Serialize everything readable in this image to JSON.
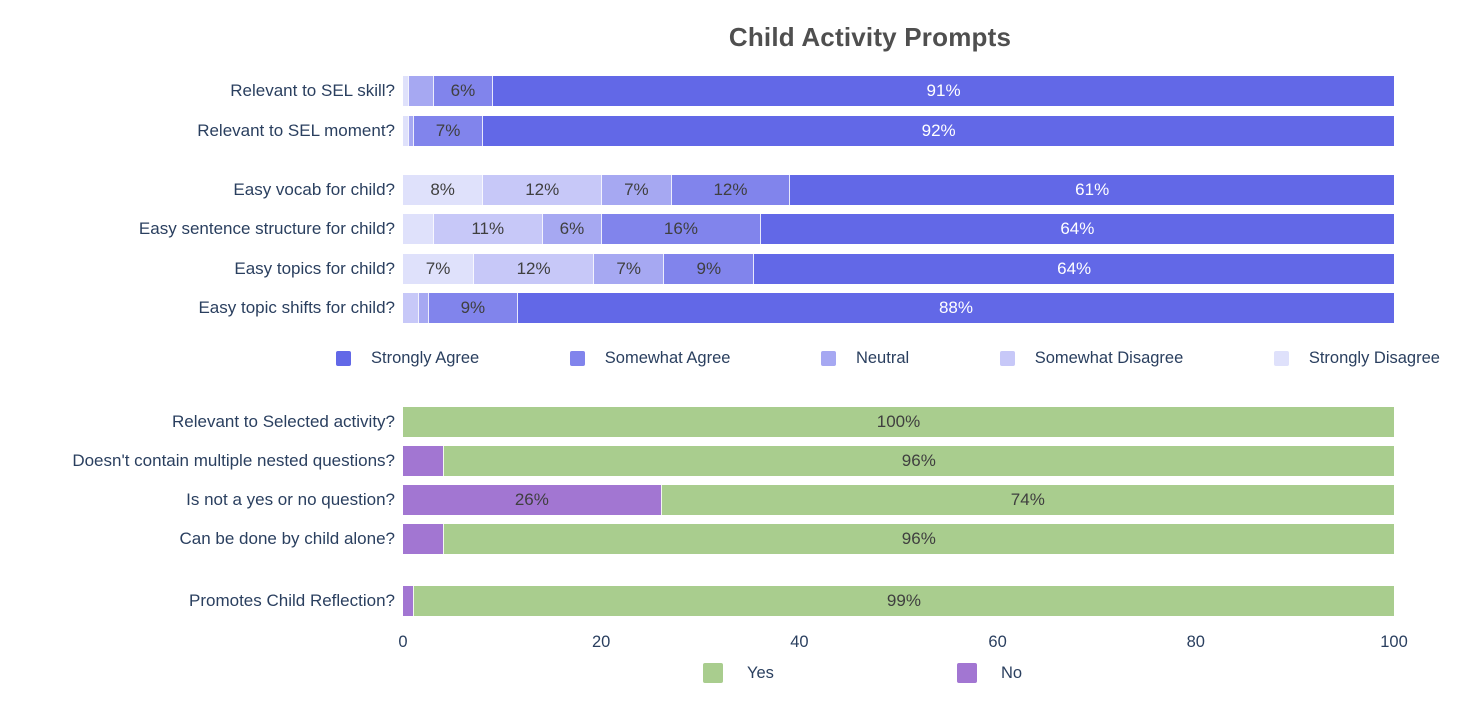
{
  "title": "Child Activity Prompts",
  "colors": {
    "strongly_agree": "#6268e7",
    "somewhat_agree": "#8184ec",
    "neutral": "#a6a8f2",
    "somewhat_disagree": "#c7c8f8",
    "strongly_disagree": "#dfe1fb",
    "yes": "#a9cd8e",
    "no": "#a276d2",
    "inside_label_dark": "#3f3f3f",
    "inside_label_light": "#ffffff",
    "axis_text": "#2a3f5f",
    "title_text": "#4f4f4f"
  },
  "chart_data": [
    {
      "type": "bar",
      "orientation": "horizontal",
      "stacked": true,
      "xlim": [
        0,
        100
      ],
      "legend_position": "bottom",
      "legend": [
        {
          "label": "Strongly Agree",
          "color": "strongly_agree"
        },
        {
          "label": "Somewhat Agree",
          "color": "somewhat_agree"
        },
        {
          "label": "Neutral",
          "color": "neutral"
        },
        {
          "label": "Somewhat Disagree",
          "color": "somewhat_disagree"
        },
        {
          "label": "Strongly Disagree",
          "color": "strongly_disagree"
        }
      ],
      "rows": [
        {
          "category": "Relevant to SEL skill?",
          "segments": [
            {
              "series": "strongly_disagree",
              "value": 0.5,
              "text": ""
            },
            {
              "series": "neutral",
              "value": 2.5,
              "text": ""
            },
            {
              "series": "somewhat_agree",
              "value": 6,
              "text": "6%"
            },
            {
              "series": "strongly_agree",
              "value": 91,
              "text": "91%"
            }
          ]
        },
        {
          "category": "Relevant to SEL moment?",
          "segments": [
            {
              "series": "strongly_disagree",
              "value": 0.5,
              "text": ""
            },
            {
              "series": "neutral",
              "value": 0.5,
              "text": ""
            },
            {
              "series": "somewhat_agree",
              "value": 7,
              "text": "7%"
            },
            {
              "series": "strongly_agree",
              "value": 92,
              "text": "92%"
            }
          ]
        },
        {
          "category": "Easy vocab for child?",
          "segments": [
            {
              "series": "strongly_disagree",
              "value": 8,
              "text": "8%"
            },
            {
              "series": "somewhat_disagree",
              "value": 12,
              "text": "12%"
            },
            {
              "series": "neutral",
              "value": 7,
              "text": "7%"
            },
            {
              "series": "somewhat_agree",
              "value": 12,
              "text": "12%"
            },
            {
              "series": "strongly_agree",
              "value": 61,
              "text": "61%"
            }
          ]
        },
        {
          "category": "Easy sentence structure for child?",
          "segments": [
            {
              "series": "strongly_disagree",
              "value": 3,
              "text": ""
            },
            {
              "series": "somewhat_disagree",
              "value": 11,
              "text": "11%"
            },
            {
              "series": "neutral",
              "value": 6,
              "text": "6%"
            },
            {
              "series": "somewhat_agree",
              "value": 16,
              "text": "16%"
            },
            {
              "series": "strongly_agree",
              "value": 64,
              "text": "64%"
            }
          ]
        },
        {
          "category": "Easy topics for child?",
          "segments": [
            {
              "series": "strongly_disagree",
              "value": 7,
              "text": "7%"
            },
            {
              "series": "somewhat_disagree",
              "value": 12,
              "text": "12%"
            },
            {
              "series": "neutral",
              "value": 7,
              "text": "7%"
            },
            {
              "series": "somewhat_agree",
              "value": 9,
              "text": "9%"
            },
            {
              "series": "strongly_agree",
              "value": 64,
              "text": "64%"
            }
          ]
        },
        {
          "category": "Easy topic shifts for child?",
          "segments": [
            {
              "series": "somewhat_disagree",
              "value": 1.5,
              "text": ""
            },
            {
              "series": "neutral",
              "value": 1,
              "text": ""
            },
            {
              "series": "somewhat_agree",
              "value": 9,
              "text": "9%"
            },
            {
              "series": "strongly_agree",
              "value": 88.5,
              "text": "88%"
            }
          ]
        }
      ]
    },
    {
      "type": "bar",
      "orientation": "horizontal",
      "stacked": true,
      "xlim": [
        0,
        100
      ],
      "x_ticks": [
        "0",
        "20",
        "40",
        "60",
        "80",
        "100"
      ],
      "legend_position": "bottom",
      "legend": [
        {
          "label": "Yes",
          "color": "yes"
        },
        {
          "label": "No",
          "color": "no"
        }
      ],
      "rows": [
        {
          "category": "Relevant to Selected activity?",
          "segments": [
            {
              "series": "yes",
              "value": 100,
              "text": "100%"
            }
          ]
        },
        {
          "category": "Doesn't contain multiple nested questions?",
          "segments": [
            {
              "series": "no",
              "value": 4,
              "text": ""
            },
            {
              "series": "yes",
              "value": 96,
              "text": "96%"
            }
          ]
        },
        {
          "category": "Is not a yes or no question?",
          "segments": [
            {
              "series": "no",
              "value": 26,
              "text": "26%"
            },
            {
              "series": "yes",
              "value": 74,
              "text": "74%"
            }
          ]
        },
        {
          "category": "Can be done by child alone?",
          "segments": [
            {
              "series": "no",
              "value": 4,
              "text": ""
            },
            {
              "series": "yes",
              "value": 96,
              "text": "96%"
            }
          ]
        },
        {
          "category": "Promotes Child Reflection?",
          "segments": [
            {
              "series": "no",
              "value": 1,
              "text": ""
            },
            {
              "series": "yes",
              "value": 99,
              "text": "99%"
            }
          ]
        }
      ]
    }
  ]
}
